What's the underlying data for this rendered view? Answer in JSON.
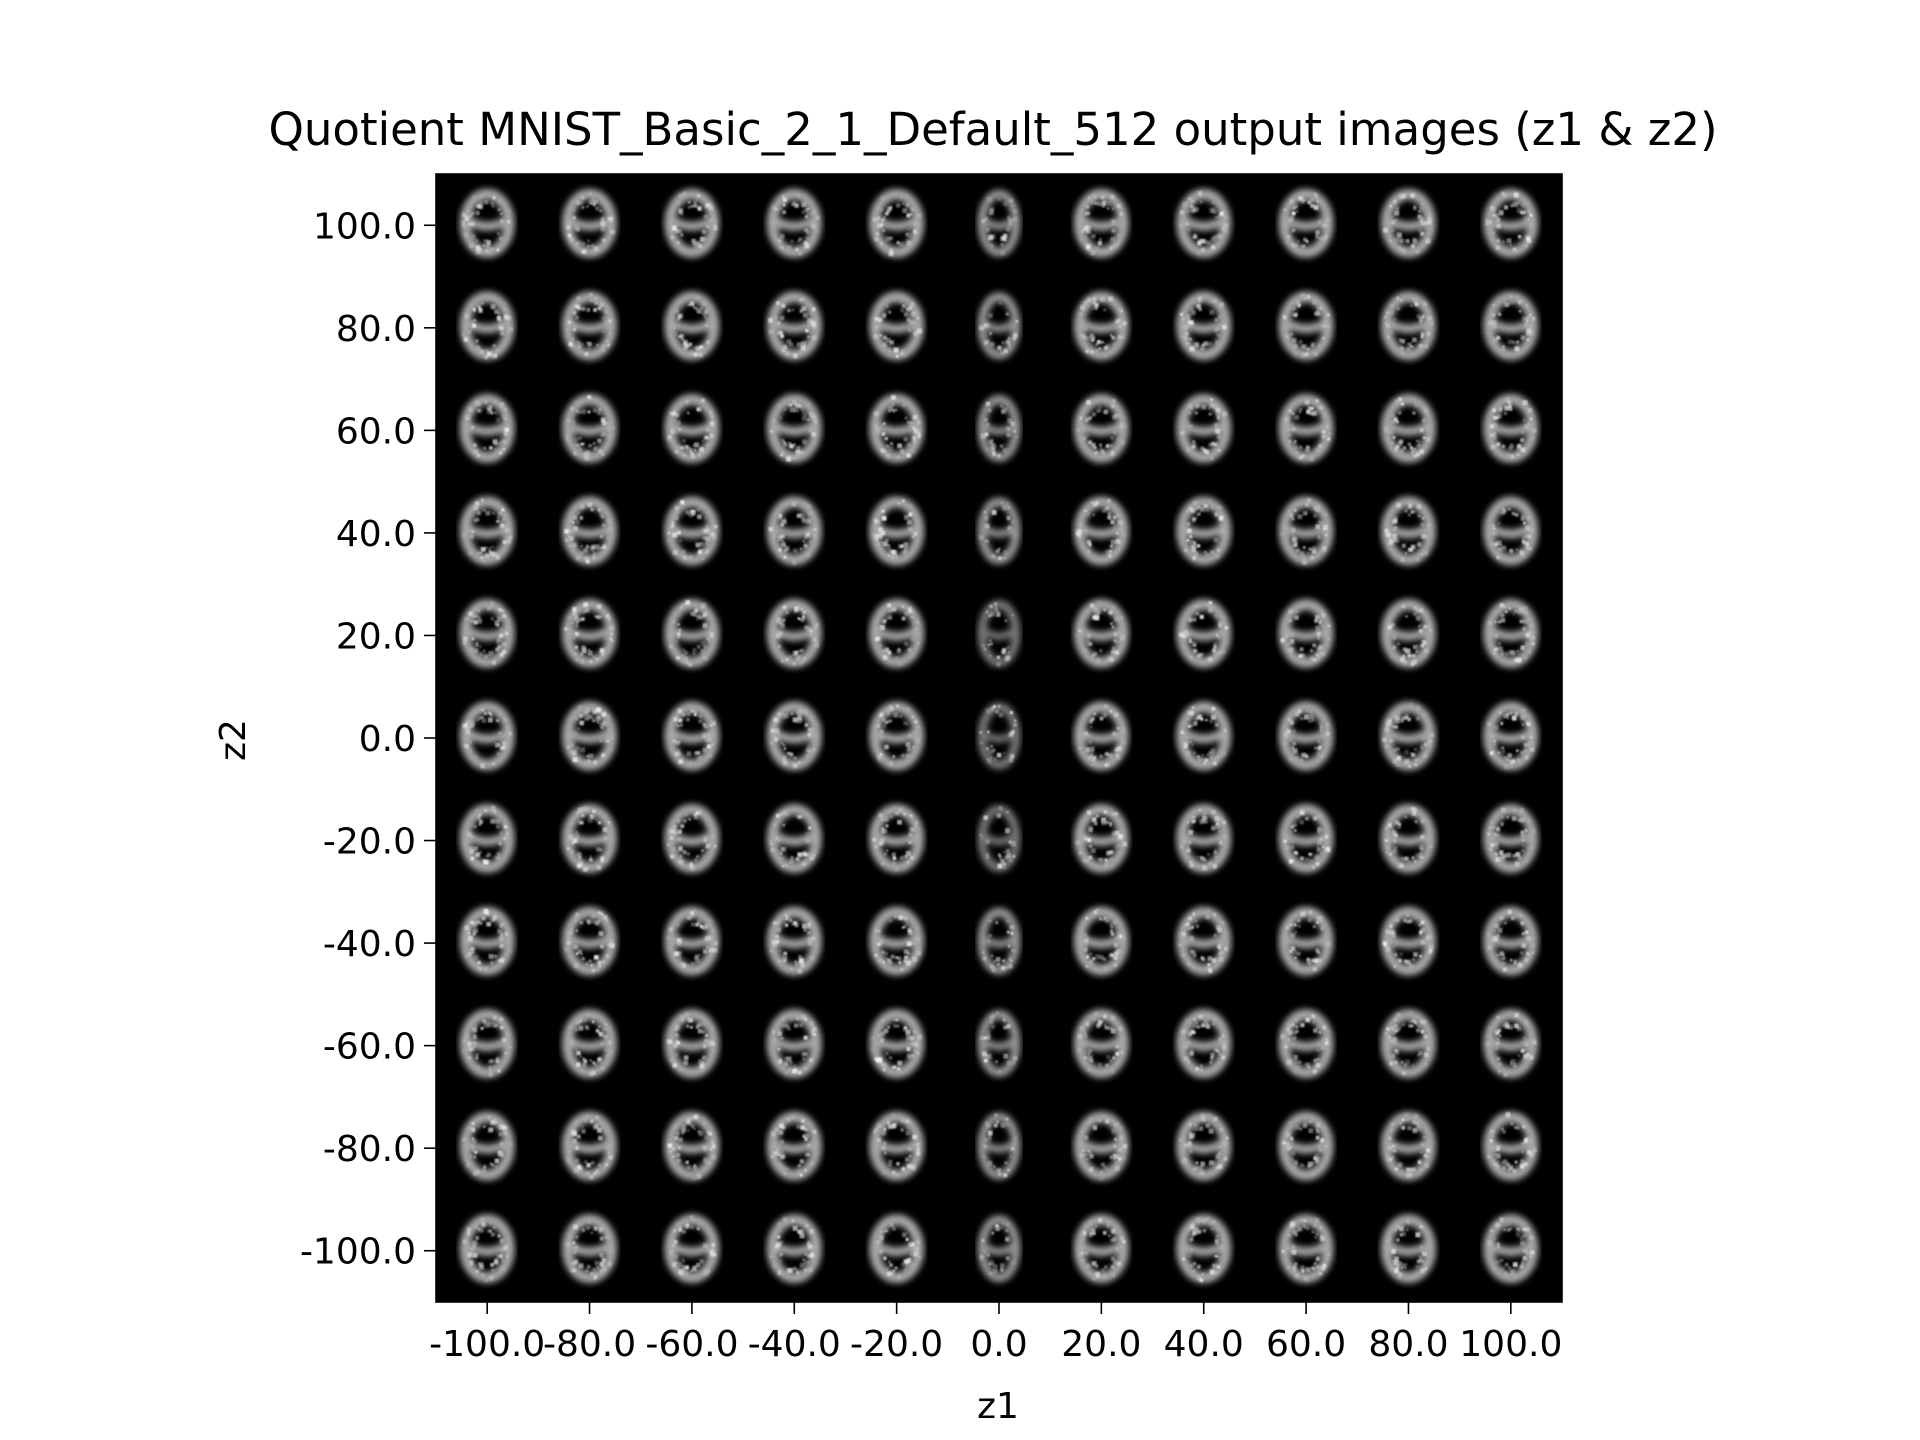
{
  "chart_data": {
    "type": "heatmap",
    "title": "Quotient MNIST_Basic_2_1_Default_512 output images (z1 & z2)",
    "xlabel": "z1",
    "ylabel": "z2",
    "x": [
      -100.0,
      -80.0,
      -60.0,
      -40.0,
      -20.0,
      0.0,
      20.0,
      40.0,
      60.0,
      80.0,
      100.0
    ],
    "y": [
      100.0,
      80.0,
      60.0,
      40.0,
      20.0,
      0.0,
      -20.0,
      -40.0,
      -60.0,
      -80.0,
      -100.0
    ],
    "x_tick_labels": [
      "-100.0",
      "-80.0",
      "-60.0",
      "-40.0",
      "-20.0",
      "0.0",
      "20.0",
      "40.0",
      "60.0",
      "80.0",
      "100.0"
    ],
    "y_tick_labels": [
      "100.0",
      "80.0",
      "60.0",
      "40.0",
      "20.0",
      "0.0",
      "-20.0",
      "-40.0",
      "-60.0",
      "-80.0",
      "-100.0"
    ],
    "xlim": [
      -110,
      110
    ],
    "ylim": [
      -110,
      110
    ],
    "grid": false,
    "cell_content": "generated grayscale digit image",
    "colors": {
      "background": "#000000",
      "digit": "#d8d8d8"
    }
  }
}
